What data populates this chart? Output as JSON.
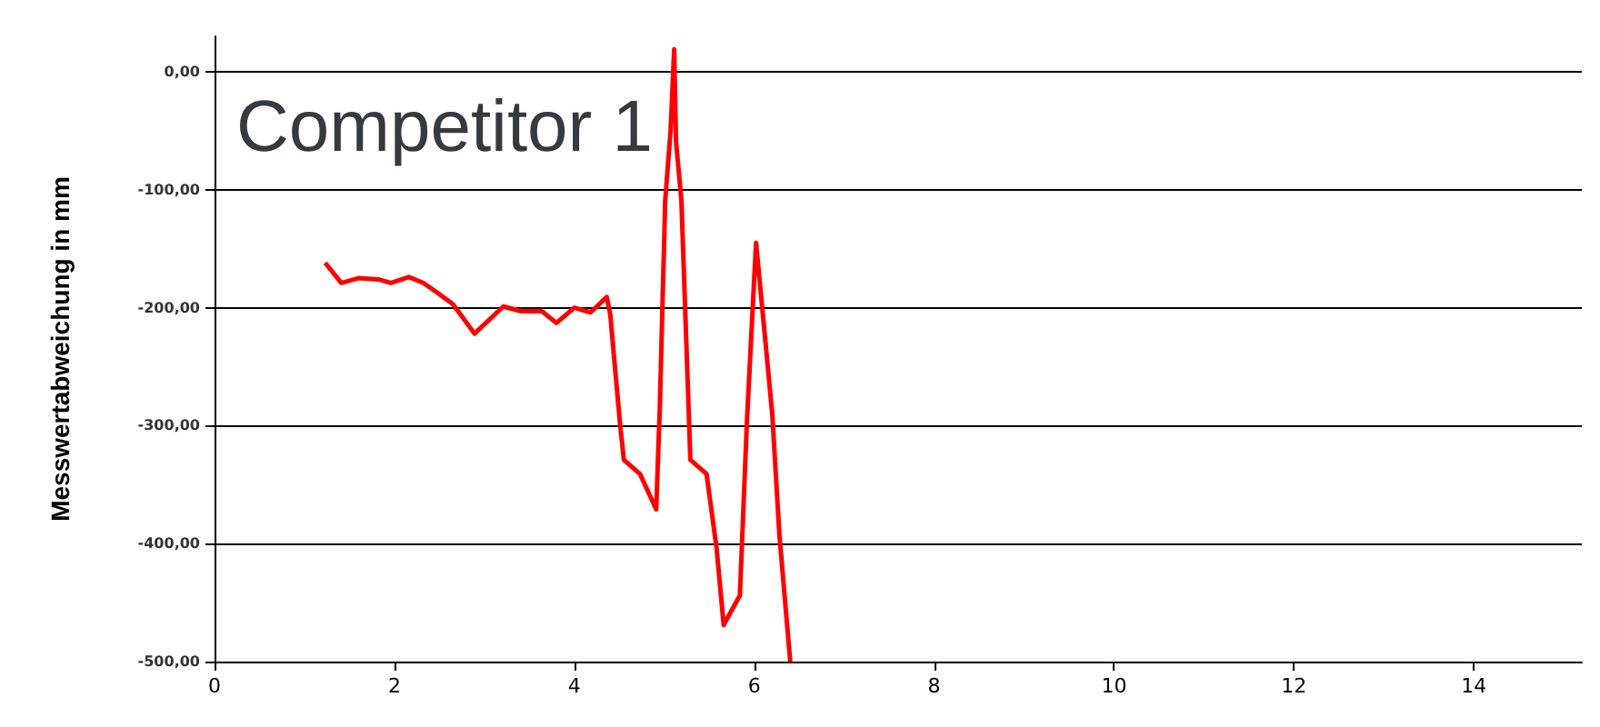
{
  "chart_data": {
    "type": "line",
    "title": "Competitor 1",
    "ylabel": "Messwertabweichung in mm",
    "x": [
      1.23,
      1.41,
      1.6,
      1.82,
      1.96,
      2.16,
      2.32,
      2.49,
      2.65,
      2.89,
      3.21,
      3.41,
      3.64,
      3.8,
      4.0,
      4.18,
      4.36,
      4.4,
      4.44,
      4.51,
      4.55,
      4.73,
      4.91,
      4.95,
      5.01,
      5.07,
      5.11,
      5.13,
      5.19,
      5.29,
      5.47,
      5.58,
      5.66,
      5.84,
      5.92,
      6.02,
      6.06,
      6.2,
      6.28,
      6.4
    ],
    "series": [
      {
        "color": "#ff0000",
        "values": [
          -162,
          -179,
          -175,
          -176,
          -179,
          -174,
          -179,
          -188,
          -197,
          -222,
          -199,
          -203,
          -203,
          -213,
          -200,
          -204,
          -191,
          -206,
          -241,
          -300,
          -329,
          -341,
          -371,
          -285,
          -109,
          -50,
          19,
          -59,
          -109,
          -329,
          -341,
          -403,
          -469,
          -444,
          -294,
          -145,
          -177,
          -290,
          -393,
          -500
        ]
      }
    ],
    "xlim": [
      0,
      15.2
    ],
    "xticks": [
      0,
      2,
      4,
      6,
      8,
      10,
      12,
      14
    ],
    "ylim": [
      -500,
      30
    ],
    "yticks": [
      {
        "value": -500,
        "label": "-500,00"
      },
      {
        "value": -400,
        "label": "-400,00"
      },
      {
        "value": -300,
        "label": "-300,00"
      },
      {
        "value": -200,
        "label": "-200,00"
      },
      {
        "value": -100,
        "label": "-100,00"
      },
      {
        "value": 0,
        "label": "0,00"
      }
    ],
    "grid": "y",
    "marker": "none",
    "line_style": "solid"
  }
}
